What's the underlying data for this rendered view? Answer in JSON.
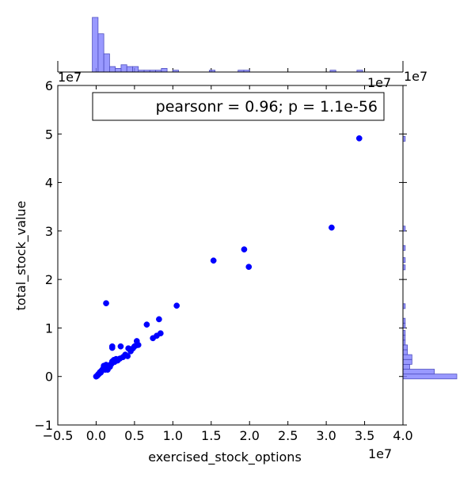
{
  "chart_data": {
    "type": "scatter",
    "annotation": "pearsonr = 0.96; p = 1.1e-56",
    "xlabel": "exercised_stock_options",
    "ylabel": "total_stock_value",
    "x_scale_label": "1e7",
    "y_scale_label": "1e7",
    "xlim": [
      -0.5,
      4.0
    ],
    "ylim": [
      -1.0,
      6.0
    ],
    "x_ticks": [
      -0.5,
      0.0,
      0.5,
      1.0,
      1.5,
      2.0,
      2.5,
      3.0,
      3.5,
      4.0
    ],
    "x_tick_labels": [
      "−0.5",
      "0.0",
      "0.5",
      "1.0",
      "1.5",
      "2.0",
      "2.5",
      "3.0",
      "3.5",
      "4.0"
    ],
    "y_ticks": [
      -1,
      0,
      1,
      2,
      3,
      4,
      5,
      6
    ],
    "y_tick_labels": [
      "−1",
      "0",
      "1",
      "2",
      "3",
      "4",
      "5",
      "6"
    ],
    "point_color": "#0000ff",
    "hist_color": "#8080ff",
    "points": [
      [
        3.43,
        4.91
      ],
      [
        3.07,
        3.07
      ],
      [
        1.53,
        2.39
      ],
      [
        1.93,
        2.62
      ],
      [
        1.99,
        2.26
      ],
      [
        1.05,
        1.46
      ],
      [
        0.13,
        1.51
      ],
      [
        0.84,
        0.89
      ],
      [
        0.79,
        0.84
      ],
      [
        0.74,
        0.79
      ],
      [
        0.82,
        1.18
      ],
      [
        0.66,
        1.07
      ],
      [
        0.53,
        0.73
      ],
      [
        0.55,
        0.65
      ],
      [
        0.5,
        0.62
      ],
      [
        0.42,
        0.58
      ],
      [
        0.45,
        0.52
      ],
      [
        0.41,
        0.42
      ],
      [
        0.32,
        0.62
      ],
      [
        0.21,
        0.59
      ],
      [
        0.21,
        0.62
      ],
      [
        0.31,
        0.37
      ],
      [
        0.26,
        0.36
      ],
      [
        0.23,
        0.34
      ],
      [
        0.21,
        0.31
      ],
      [
        0.19,
        0.25
      ],
      [
        0.17,
        0.22
      ],
      [
        0.15,
        0.2
      ],
      [
        0.13,
        0.24
      ],
      [
        0.12,
        0.18
      ],
      [
        0.1,
        0.22
      ],
      [
        0.09,
        0.16
      ],
      [
        0.08,
        0.13
      ],
      [
        0.06,
        0.1
      ],
      [
        0.05,
        0.09
      ],
      [
        0.04,
        0.06
      ],
      [
        0.03,
        0.04
      ],
      [
        0.02,
        0.03
      ],
      [
        0.01,
        0.01
      ],
      [
        0.0,
        0.0
      ],
      [
        0.015,
        0.015
      ],
      [
        0.025,
        0.035
      ],
      [
        0.045,
        0.07
      ],
      [
        0.07,
        0.12
      ],
      [
        0.11,
        0.15
      ],
      [
        0.14,
        0.17
      ],
      [
        0.16,
        0.19
      ],
      [
        0.18,
        0.2
      ],
      [
        0.24,
        0.3
      ],
      [
        0.28,
        0.33
      ],
      [
        0.35,
        0.4
      ],
      [
        0.38,
        0.45
      ],
      [
        0.48,
        0.58
      ],
      [
        0.52,
        0.64
      ],
      [
        0.03,
        0.05
      ],
      [
        0.06,
        0.08
      ],
      [
        0.09,
        0.14
      ],
      [
        0.12,
        0.14
      ],
      [
        0.15,
        0.14
      ],
      [
        0.2,
        0.26
      ]
    ],
    "x_hist": [
      {
        "start": -0.05,
        "end": 0.025,
        "count": 30
      },
      {
        "start": 0.025,
        "end": 0.1,
        "count": 21
      },
      {
        "start": 0.1,
        "end": 0.175,
        "count": 10
      },
      {
        "start": 0.175,
        "end": 0.25,
        "count": 3
      },
      {
        "start": 0.25,
        "end": 0.325,
        "count": 2
      },
      {
        "start": 0.325,
        "end": 0.4,
        "count": 4
      },
      {
        "start": 0.4,
        "end": 0.475,
        "count": 3
      },
      {
        "start": 0.475,
        "end": 0.55,
        "count": 3
      },
      {
        "start": 0.55,
        "end": 0.625,
        "count": 1
      },
      {
        "start": 0.625,
        "end": 0.7,
        "count": 1
      },
      {
        "start": 0.7,
        "end": 0.775,
        "count": 1
      },
      {
        "start": 0.775,
        "end": 0.85,
        "count": 1
      },
      {
        "start": 0.85,
        "end": 0.925,
        "count": 2
      },
      {
        "start": 1.0,
        "end": 1.075,
        "count": 1
      },
      {
        "start": 1.475,
        "end": 1.55,
        "count": 1
      },
      {
        "start": 1.85,
        "end": 1.925,
        "count": 1
      },
      {
        "start": 1.925,
        "end": 2.0,
        "count": 1
      },
      {
        "start": 3.05,
        "end": 3.125,
        "count": 1
      },
      {
        "start": 3.4,
        "end": 3.475,
        "count": 1
      }
    ],
    "y_hist": [
      {
        "start": -0.05,
        "end": 0.05,
        "count": 24
      },
      {
        "start": 0.05,
        "end": 0.15,
        "count": 14
      },
      {
        "start": 0.15,
        "end": 0.25,
        "count": 3
      },
      {
        "start": 0.25,
        "end": 0.35,
        "count": 4
      },
      {
        "start": 0.35,
        "end": 0.45,
        "count": 4
      },
      {
        "start": 0.45,
        "end": 0.55,
        "count": 2
      },
      {
        "start": 0.55,
        "end": 0.65,
        "count": 2
      },
      {
        "start": 0.65,
        "end": 0.75,
        "count": 1
      },
      {
        "start": 0.75,
        "end": 0.85,
        "count": 1
      },
      {
        "start": 0.85,
        "end": 0.95,
        "count": 1
      },
      {
        "start": 1.0,
        "end": 1.1,
        "count": 1
      },
      {
        "start": 1.1,
        "end": 1.2,
        "count": 1
      },
      {
        "start": 1.4,
        "end": 1.5,
        "count": 1
      },
      {
        "start": 2.2,
        "end": 2.3,
        "count": 1
      },
      {
        "start": 2.35,
        "end": 2.45,
        "count": 1
      },
      {
        "start": 2.6,
        "end": 2.7,
        "count": 1
      },
      {
        "start": 3.0,
        "end": 3.1,
        "count": 1
      },
      {
        "start": 4.85,
        "end": 4.95,
        "count": 1
      }
    ]
  }
}
